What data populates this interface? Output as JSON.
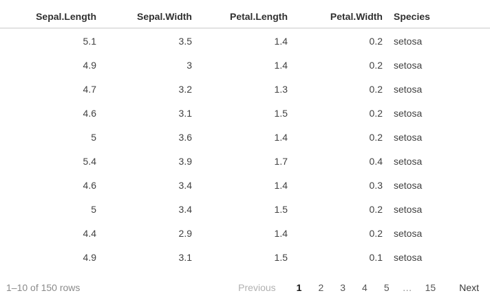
{
  "table": {
    "columns": [
      {
        "label": "Sepal.Length",
        "align": "right"
      },
      {
        "label": "Sepal.Width",
        "align": "right"
      },
      {
        "label": "Petal.Length",
        "align": "right"
      },
      {
        "label": "Petal.Width",
        "align": "right"
      },
      {
        "label": "Species",
        "align": "left"
      }
    ],
    "rows": [
      [
        "5.1",
        "3.5",
        "1.4",
        "0.2",
        "setosa"
      ],
      [
        "4.9",
        "3",
        "1.4",
        "0.2",
        "setosa"
      ],
      [
        "4.7",
        "3.2",
        "1.3",
        "0.2",
        "setosa"
      ],
      [
        "4.6",
        "3.1",
        "1.5",
        "0.2",
        "setosa"
      ],
      [
        "5",
        "3.6",
        "1.4",
        "0.2",
        "setosa"
      ],
      [
        "5.4",
        "3.9",
        "1.7",
        "0.4",
        "setosa"
      ],
      [
        "4.6",
        "3.4",
        "1.4",
        "0.3",
        "setosa"
      ],
      [
        "5",
        "3.4",
        "1.5",
        "0.2",
        "setosa"
      ],
      [
        "4.4",
        "2.9",
        "1.4",
        "0.2",
        "setosa"
      ],
      [
        "4.9",
        "3.1",
        "1.5",
        "0.1",
        "setosa"
      ]
    ]
  },
  "footer": {
    "info": "1–10 of 150 rows",
    "pagination": {
      "previous": "Previous",
      "pages": [
        "1",
        "2",
        "3",
        "4",
        "5",
        "…",
        "15"
      ],
      "current_page": "1",
      "next": "Next"
    }
  },
  "colors": {
    "header_text": "#303030",
    "cell_text": "#404040",
    "header_border": "#e2e2e2",
    "muted_text": "#8a8a8a",
    "disabled_text": "#b0b0b0",
    "background": "#ffffff"
  }
}
